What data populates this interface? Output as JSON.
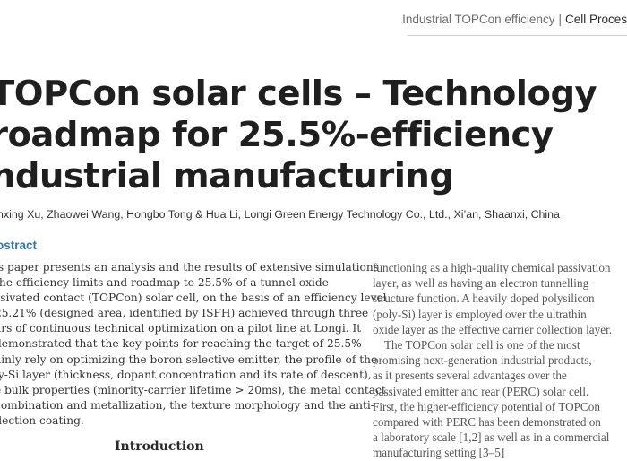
{
  "header": {
    "topic": "Industrial TOPCon efficiency",
    "separator": "|",
    "section": "Cell Proces"
  },
  "title_lines": [
    "TOPCon solar cells – Technology",
    "roadmap for 25.5%-efficiency",
    "ndustrial manufacturing"
  ],
  "authors": "nxing Xu, Zhaowei Wang, Hongbo Tong & Hua Li, Longi Green Energy Technology Co., Ltd., Xi’an, Shaanxi, China",
  "abstract": {
    "heading": "ostract",
    "lines": [
      "is paper presents an analysis and the results of extensive simulations",
      "the efficiency limits and roadmap to 25.5% of a tunnel oxide",
      "ssivated contact (TOPCon) solar cell, on the basis of an efficiency level",
      "25.21% (designed area, identified by ISFH) achieved through three",
      "ars of continuous technical optimization on a pilot line at Longi. It",
      "demonstrated that the key points for reaching the target of 25.5%",
      "ainly rely on optimizing the boron selective emitter, the profile of the",
      "ly-Si layer (thickness, dopant concentration and its rate of descent),",
      "e bulk properties (minority-carrier lifetime > 20ms), the metal contact",
      "combination and metallization, the texture morphology and the anti-",
      "flection coating."
    ]
  },
  "right_column": {
    "lines": [
      "functioning as a high-quality chemical passivation",
      "layer, as well as having an electron tunnelling",
      "structure function. A heavily doped polysilicon",
      "(poly-Si) layer is employed over the ultrathin",
      "oxide layer as the effective carrier collection layer.",
      "The TOPCon solar cell is one of the most",
      "promising next-generation industrial products,",
      "as it presents several advantages over the",
      "passivated emitter and rear (PERC) solar cell.",
      "First, the higher-efficiency potential of TOPCon",
      "compared with PERC has been demonstrated on",
      "a laboratory scale [1,2] as well as in a commercial",
      "manufacturing setting [3–5]"
    ]
  },
  "intro_heading": "Introduction"
}
